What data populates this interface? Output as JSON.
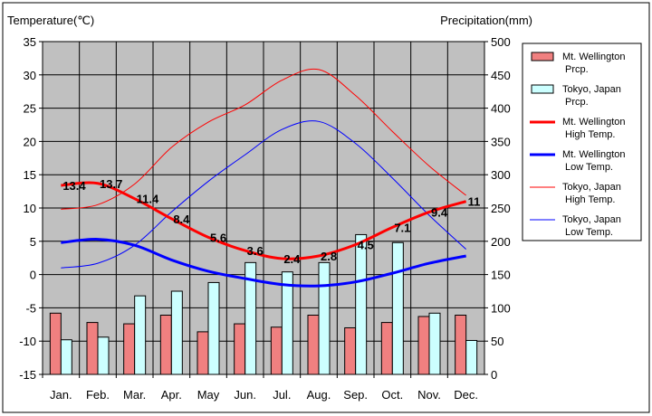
{
  "chart_data": {
    "type": "bar",
    "left_axis_title": "Temperature(℃)",
    "right_axis_title": "Precipitation(mm)",
    "categories": [
      "Jan.",
      "Feb.",
      "Mar.",
      "Apr.",
      "May",
      "Jun.",
      "Jul.",
      "Aug.",
      "Sep.",
      "Oct.",
      "Nov.",
      "Dec."
    ],
    "temp_range": [
      -15,
      35
    ],
    "temp_ticks": [
      "35",
      "30",
      "25",
      "20",
      "15",
      "10",
      "5",
      "0",
      "-5",
      "-10",
      "-15"
    ],
    "precip_range": [
      0,
      500
    ],
    "precip_ticks": [
      "500",
      "450",
      "400",
      "350",
      "300",
      "250",
      "200",
      "150",
      "100",
      "50",
      "0"
    ],
    "precip_series": [
      {
        "name": "Mt. Wellington Prcp.",
        "legend": [
          "Mt. Wellington",
          "Prcp."
        ],
        "color": "#f08080",
        "values": [
          92,
          78,
          76,
          89,
          64,
          76,
          71,
          89,
          70,
          78,
          87,
          89
        ]
      },
      {
        "name": "Tokyo, Japan Prcp.",
        "legend": [
          "Tokyo, Japan",
          "Prcp."
        ],
        "color": "#ccffff",
        "values": [
          52,
          56,
          118,
          125,
          138,
          168,
          154,
          168,
          210,
          198,
          92,
          51
        ]
      }
    ],
    "temp_series": [
      {
        "name": "Mt. Wellington High Temp.",
        "legend": [
          "Mt. Wellington",
          "High Temp."
        ],
        "color": "#ff0000",
        "width": 3,
        "values": [
          13.4,
          13.7,
          11.4,
          8.4,
          5.6,
          3.6,
          2.4,
          2.8,
          4.5,
          7.1,
          9.4,
          11
        ],
        "labels": [
          "13.4",
          "13.7",
          "11.4",
          "8.4",
          "5.6",
          "3.6",
          "2.4",
          "2.8",
          "4.5",
          "7.1",
          "9.4",
          "11"
        ]
      },
      {
        "name": "Mt. Wellington Low Temp.",
        "legend": [
          "Mt. Wellington",
          "Low Temp."
        ],
        "color": "#0000ff",
        "width": 3,
        "values": [
          4.8,
          5.3,
          4.4,
          2.2,
          0.5,
          -0.6,
          -1.5,
          -1.7,
          -1.1,
          0.2,
          1.7,
          2.8
        ]
      },
      {
        "name": "Tokyo, Japan High Temp.",
        "legend": [
          "Tokyo, Japan",
          "High Temp."
        ],
        "color": "#ff0000",
        "width": 1,
        "values": [
          9.8,
          10.5,
          13.6,
          19.1,
          22.9,
          25.5,
          29.2,
          30.8,
          26.9,
          21.5,
          16.3,
          11.9
        ]
      },
      {
        "name": "Tokyo, Japan Low Temp.",
        "legend": [
          "Tokyo, Japan",
          "Low Temp."
        ],
        "color": "#0000ff",
        "width": 1,
        "values": [
          1.0,
          1.7,
          4.4,
          9.4,
          14.0,
          18.0,
          21.8,
          23.0,
          19.7,
          14.5,
          8.9,
          3.8
        ]
      }
    ],
    "grid": true,
    "legend_position": "right"
  }
}
